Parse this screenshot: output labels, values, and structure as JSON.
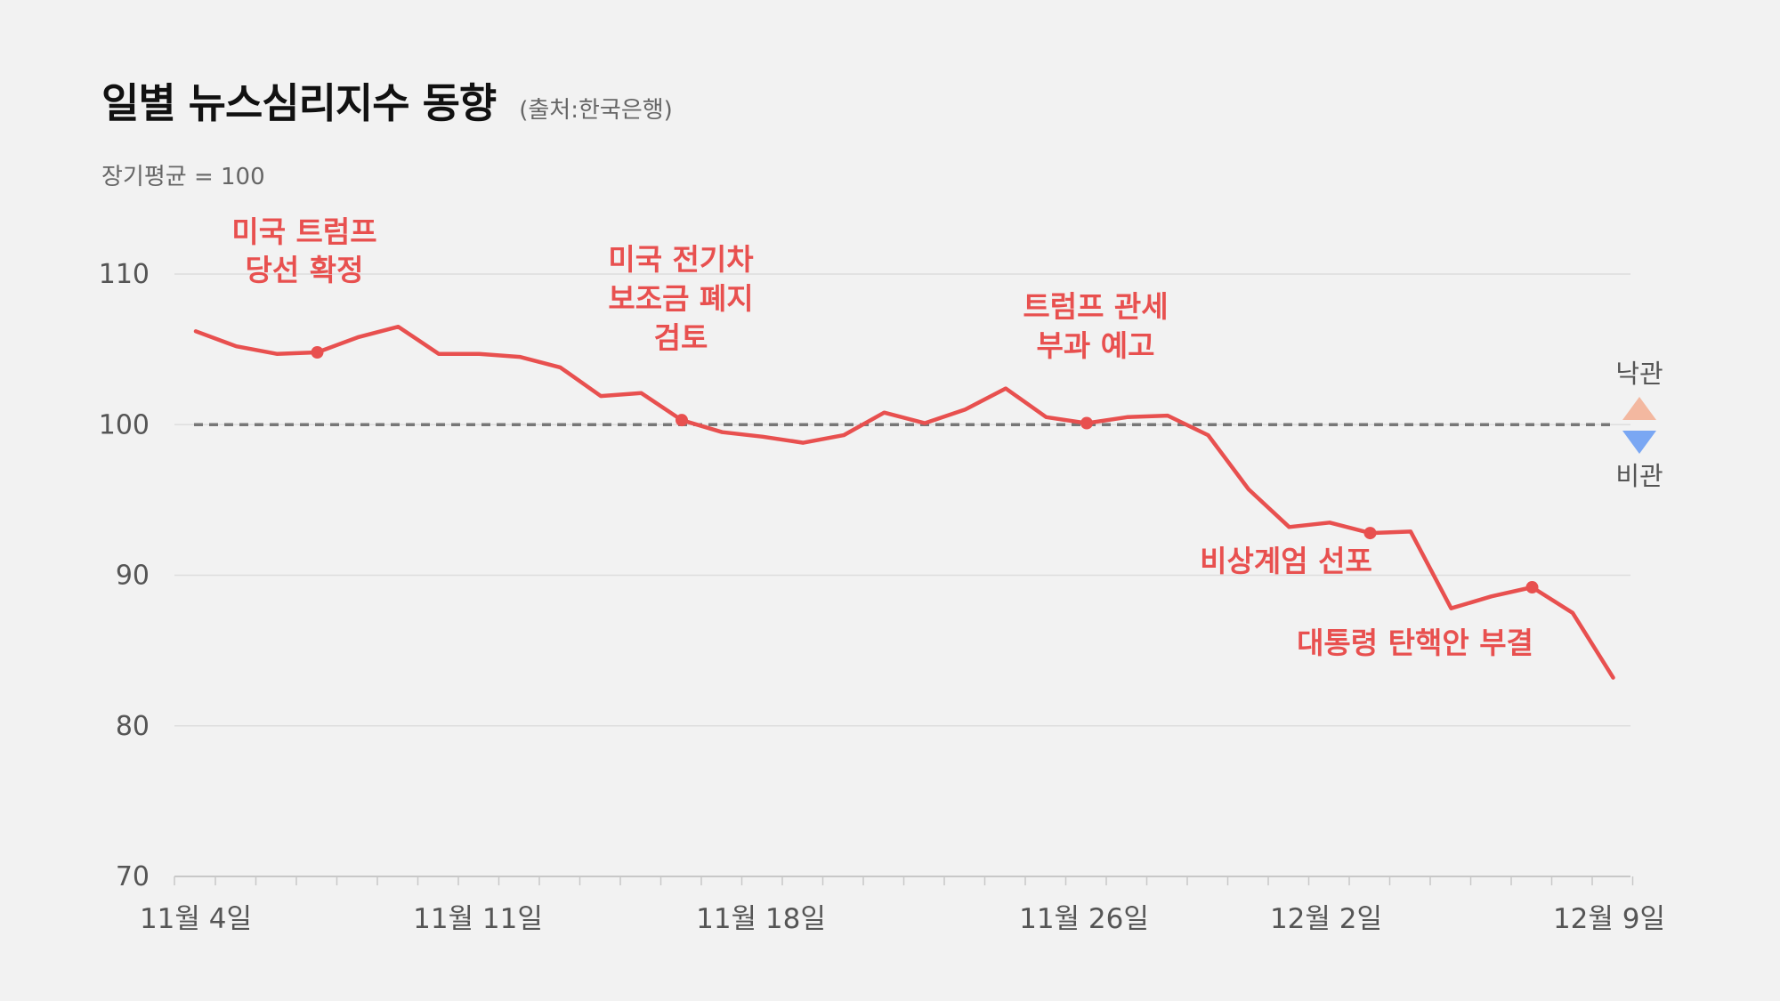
{
  "title": "일별 뉴스심리지수 동향",
  "source": "(출처:한국은행)",
  "subtitle": "장기평균 = 100",
  "colors": {
    "line": "#e8504f",
    "baseline": "#777777",
    "grid": "#dddddd",
    "optimism": "#f3b8a0",
    "pessimism": "#7aa7f3"
  },
  "legend": {
    "optimism_label": "낙관",
    "pessimism_label": "비관"
  },
  "chart_data": {
    "type": "line",
    "ylim": [
      70,
      110
    ],
    "yticks": [
      110,
      100,
      90,
      80,
      70
    ],
    "baseline": 100,
    "grid": true,
    "xtick_labels": [
      "11월 4일",
      "11월 11일",
      "11월 18일",
      "11월 26일",
      "12월 2일",
      "12월 9일"
    ],
    "series": [
      {
        "values": [
          106.2,
          105.2,
          104.7,
          104.8,
          105.8,
          106.5,
          104.7,
          104.7,
          104.5,
          103.8,
          101.9,
          102.1,
          100.3,
          99.5,
          99.2,
          98.8,
          99.3,
          100.8,
          100.1,
          101.0,
          102.4,
          100.5,
          100.1,
          100.5,
          100.6,
          99.3,
          95.7,
          93.2,
          93.5,
          92.8,
          92.9,
          87.8,
          88.6,
          89.2,
          87.5,
          83.2
        ]
      }
    ],
    "annotations": [
      {
        "lines": [
          "미국 트럼프",
          "당선 확정"
        ],
        "point_index": 3
      },
      {
        "lines": [
          "미국 전기차",
          "보조금 폐지",
          "검토"
        ],
        "point_index": 12
      },
      {
        "lines": [
          "트럼프 관세",
          "부과 예고"
        ],
        "point_index": 22
      },
      {
        "lines": [
          "비상계엄 선포"
        ],
        "point_index": 29
      },
      {
        "lines": [
          "대통령 탄핵안 부결"
        ],
        "point_index": 33
      }
    ]
  }
}
